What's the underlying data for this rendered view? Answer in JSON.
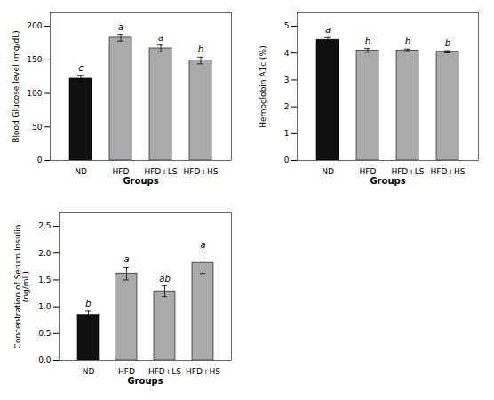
{
  "chart_data": [
    {
      "type": "bar",
      "categories": [
        "ND",
        "HFD",
        "HFD+LS",
        "HFD+HS"
      ],
      "values": [
        122,
        183,
        167,
        149
      ],
      "errors": [
        5,
        5,
        5,
        5
      ],
      "colors": [
        "#111111",
        "#aaaaaa",
        "#aaaaaa",
        "#aaaaaa"
      ],
      "annotations": [
        "c",
        "a",
        "a",
        "b"
      ],
      "xlabel": "Groups",
      "ylabel": "Blood Glucose level (mg/dL)",
      "ylim": [
        0,
        220
      ],
      "yticks": [
        0,
        50,
        100,
        150,
        200
      ]
    },
    {
      "type": "bar",
      "categories": [
        "ND",
        "HFD",
        "HFD+LS",
        "HFD+HS"
      ],
      "values": [
        4.5,
        4.1,
        4.1,
        4.05
      ],
      "errors": [
        0.08,
        0.07,
        0.05,
        0.04
      ],
      "colors": [
        "#111111",
        "#aaaaaa",
        "#aaaaaa",
        "#aaaaaa"
      ],
      "annotations": [
        "a",
        "b",
        "b",
        "b"
      ],
      "xlabel": "Groups",
      "ylabel": "Hemoglobin A1c (%)",
      "ylim": [
        0,
        5.5
      ],
      "yticks": [
        0,
        1,
        2,
        3,
        4,
        5
      ]
    },
    {
      "type": "bar",
      "categories": [
        "ND",
        "HFD",
        "HFD+LS",
        "HFD+HS"
      ],
      "values": [
        0.85,
        1.62,
        1.29,
        1.82
      ],
      "errors": [
        0.07,
        0.12,
        0.1,
        0.2
      ],
      "colors": [
        "#111111",
        "#aaaaaa",
        "#aaaaaa",
        "#aaaaaa"
      ],
      "annotations": [
        "b",
        "a",
        "ab",
        "a"
      ],
      "xlabel": "Groups",
      "ylabel": "Concentration of Serum Insulin\n(ng/mL)",
      "ylim": [
        0,
        2.75
      ],
      "yticks": [
        {
          "value": 0,
          "label": "0.0"
        },
        0.5,
        {
          "value": 1,
          "label": "1.0"
        },
        1.5,
        {
          "value": 2,
          "label": "2.0"
        },
        2.5
      ]
    }
  ]
}
